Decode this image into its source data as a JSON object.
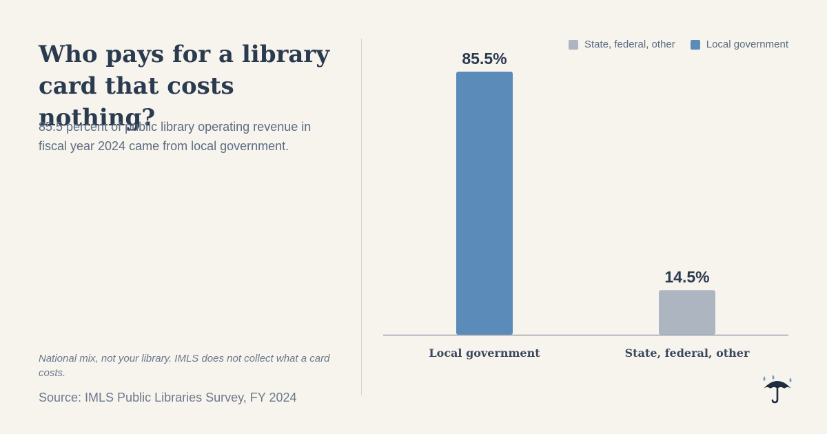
{
  "header": {
    "title": "Who pays for a library card that costs nothing?",
    "subtitle": "85.5 percent of public library operating revenue in fiscal year 2024 came from local government."
  },
  "footer": {
    "note": "National mix, not your library. IMLS does not collect what a card costs.",
    "source": "Source: IMLS Public Libraries Survey, FY 2024"
  },
  "legend": {
    "items": [
      {
        "label": "State, federal, other",
        "color": "#adb5c0"
      },
      {
        "label": "Local government",
        "color": "#5b8bb8"
      }
    ]
  },
  "colors": {
    "background": "#f7f3ed",
    "local": "#5b8bb8",
    "other": "#adb5c0",
    "text": "#2a3a4f",
    "icon": "#1f2c3d",
    "drop": "#6f9ac4"
  },
  "icons": {
    "logo": "umbrella-icon"
  },
  "chart_data": {
    "type": "bar",
    "categories": [
      "Local government",
      "State, federal, other"
    ],
    "values": [
      85.5,
      14.5
    ],
    "value_labels": [
      "85.5%",
      "14.5%"
    ],
    "bar_colors": [
      "#5b8bb8",
      "#adb5c0"
    ],
    "title": "",
    "xlabel": "",
    "ylabel": "",
    "ylim": [
      0,
      85.5
    ],
    "grid": false,
    "legend_position": "top-right"
  }
}
